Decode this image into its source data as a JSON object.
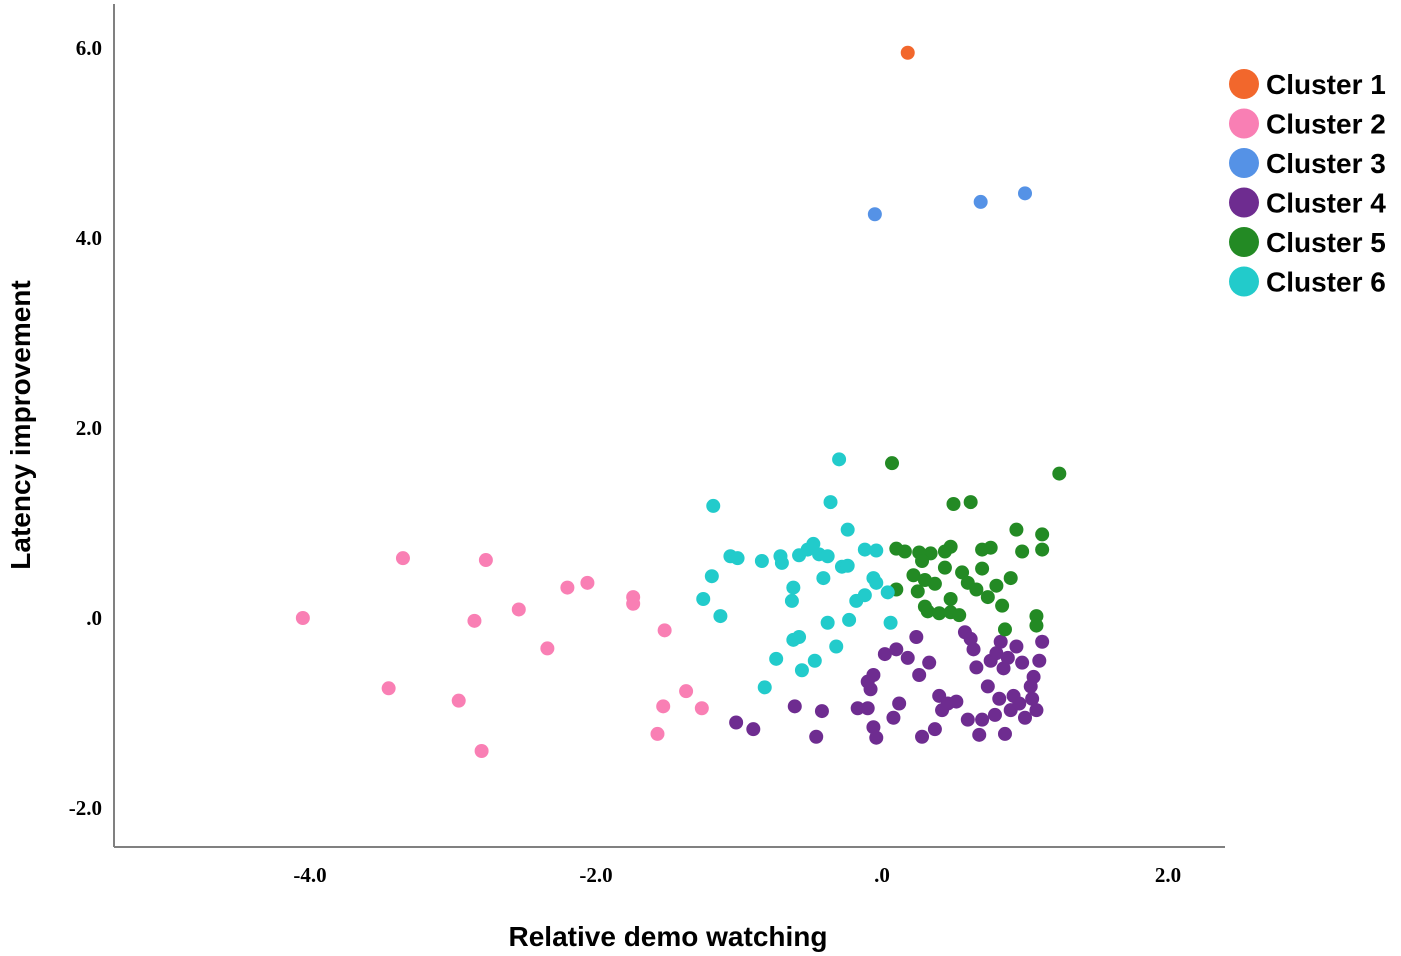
{
  "chart_data": {
    "type": "scatter",
    "xlabel": "Relative demo watching",
    "ylabel": "Latency improvement",
    "xlim": [
      -5.3,
      2.4
    ],
    "ylim": [
      -2.4,
      6.5
    ],
    "x_ticks": [
      {
        "value": -4.0,
        "label": "-4.0"
      },
      {
        "value": -2.0,
        "label": "-2.0"
      },
      {
        "value": 0.0,
        "label": ".0"
      },
      {
        "value": 2.0,
        "label": "2.0"
      }
    ],
    "y_ticks": [
      {
        "value": 6.0,
        "label": "6.0"
      },
      {
        "value": 4.0,
        "label": "4.0"
      },
      {
        "value": 2.0,
        "label": "2.0"
      },
      {
        "value": 0.0,
        "label": ".0"
      },
      {
        "value": -2.0,
        "label": "-2.0"
      }
    ],
    "grid": false,
    "legend_position": "top-right",
    "series": [
      {
        "name": "Cluster 1",
        "color": "#f2672c",
        "points": [
          [
            0.18,
            5.95
          ]
        ]
      },
      {
        "name": "Cluster 2",
        "color": "#f97fb4",
        "points": [
          [
            -4.05,
            0.0
          ],
          [
            -3.35,
            0.63
          ],
          [
            -2.77,
            0.61
          ],
          [
            -3.45,
            -0.74
          ],
          [
            -2.96,
            -0.87
          ],
          [
            -2.85,
            -0.03
          ],
          [
            -2.8,
            -1.4
          ],
          [
            -2.54,
            0.09
          ],
          [
            -2.34,
            -0.32
          ],
          [
            -2.2,
            0.32
          ],
          [
            -2.06,
            0.37
          ],
          [
            -1.74,
            0.22
          ],
          [
            -1.74,
            0.15
          ],
          [
            -1.52,
            -0.13
          ],
          [
            -1.53,
            -0.93
          ],
          [
            -1.57,
            -1.22
          ],
          [
            -1.37,
            -0.77
          ],
          [
            -1.26,
            -0.95
          ]
        ]
      },
      {
        "name": "Cluster 3",
        "color": "#5592e6",
        "points": [
          [
            -0.05,
            4.25
          ],
          [
            0.69,
            4.38
          ],
          [
            1.0,
            4.47
          ]
        ]
      },
      {
        "name": "Cluster 4",
        "color": "#6e2c90",
        "points": [
          [
            -1.02,
            -1.1
          ],
          [
            -0.9,
            -1.17
          ],
          [
            -0.61,
            -0.93
          ],
          [
            -0.46,
            -1.25
          ],
          [
            -0.42,
            -0.98
          ],
          [
            -0.17,
            -0.95
          ],
          [
            -0.1,
            -0.95
          ],
          [
            -0.06,
            -1.15
          ],
          [
            -0.04,
            -1.26
          ],
          [
            -0.08,
            -0.75
          ],
          [
            -0.1,
            -0.67
          ],
          [
            -0.06,
            -0.6
          ],
          [
            0.02,
            -0.38
          ],
          [
            0.1,
            -0.33
          ],
          [
            0.12,
            -0.9
          ],
          [
            0.08,
            -1.05
          ],
          [
            0.18,
            -0.42
          ],
          [
            0.24,
            -0.2
          ],
          [
            0.26,
            -0.6
          ],
          [
            0.28,
            -1.25
          ],
          [
            0.33,
            -0.47
          ],
          [
            0.37,
            -1.17
          ],
          [
            0.4,
            -0.82
          ],
          [
            0.42,
            -0.97
          ],
          [
            0.46,
            -0.9
          ],
          [
            0.52,
            -0.88
          ],
          [
            0.58,
            -0.15
          ],
          [
            0.62,
            -0.22
          ],
          [
            0.6,
            -1.07
          ],
          [
            0.64,
            -0.33
          ],
          [
            0.66,
            -0.52
          ],
          [
            0.68,
            -1.23
          ],
          [
            0.7,
            -1.07
          ],
          [
            0.74,
            -0.72
          ],
          [
            0.76,
            -0.45
          ],
          [
            0.79,
            -1.02
          ],
          [
            0.8,
            -0.37
          ],
          [
            0.82,
            -0.85
          ],
          [
            0.83,
            -0.25
          ],
          [
            0.85,
            -0.53
          ],
          [
            0.86,
            -1.22
          ],
          [
            0.88,
            -0.42
          ],
          [
            0.9,
            -0.97
          ],
          [
            0.92,
            -0.82
          ],
          [
            0.94,
            -0.3
          ],
          [
            0.96,
            -0.9
          ],
          [
            0.98,
            -0.47
          ],
          [
            1.0,
            -1.05
          ],
          [
            1.04,
            -0.72
          ],
          [
            1.06,
            -0.62
          ],
          [
            1.08,
            -0.97
          ],
          [
            1.05,
            -0.85
          ],
          [
            1.1,
            -0.45
          ],
          [
            1.12,
            -0.25
          ]
        ]
      },
      {
        "name": "Cluster 5",
        "color": "#238a24",
        "points": [
          [
            0.07,
            1.63
          ],
          [
            1.24,
            1.52
          ],
          [
            0.5,
            1.2
          ],
          [
            0.62,
            1.22
          ],
          [
            1.12,
            0.88
          ],
          [
            0.94,
            0.93
          ],
          [
            1.12,
            0.72
          ],
          [
            0.98,
            0.7
          ],
          [
            0.7,
            0.72
          ],
          [
            0.76,
            0.74
          ],
          [
            0.48,
            0.75
          ],
          [
            0.44,
            0.7
          ],
          [
            0.34,
            0.68
          ],
          [
            0.26,
            0.69
          ],
          [
            0.16,
            0.7
          ],
          [
            0.1,
            0.73
          ],
          [
            0.28,
            0.6
          ],
          [
            0.44,
            0.53
          ],
          [
            0.56,
            0.48
          ],
          [
            0.7,
            0.52
          ],
          [
            0.22,
            0.45
          ],
          [
            0.3,
            0.4
          ],
          [
            0.37,
            0.36
          ],
          [
            0.6,
            0.37
          ],
          [
            0.8,
            0.34
          ],
          [
            0.9,
            0.42
          ],
          [
            0.1,
            0.3
          ],
          [
            0.25,
            0.28
          ],
          [
            0.48,
            0.2
          ],
          [
            0.66,
            0.3
          ],
          [
            0.74,
            0.22
          ],
          [
            0.3,
            0.12
          ],
          [
            0.32,
            0.07
          ],
          [
            0.4,
            0.05
          ],
          [
            0.48,
            0.06
          ],
          [
            0.54,
            0.03
          ],
          [
            0.84,
            0.13
          ],
          [
            1.08,
            0.02
          ],
          [
            1.08,
            -0.08
          ],
          [
            0.86,
            -0.12
          ]
        ]
      },
      {
        "name": "Cluster 6",
        "color": "#22cbcb",
        "points": [
          [
            -1.18,
            1.18
          ],
          [
            -0.3,
            1.67
          ],
          [
            -0.36,
            1.22
          ],
          [
            -0.24,
            0.93
          ],
          [
            -1.06,
            0.65
          ],
          [
            -1.01,
            0.63
          ],
          [
            -0.84,
            0.6
          ],
          [
            -0.71,
            0.65
          ],
          [
            -0.7,
            0.58
          ],
          [
            -0.58,
            0.66
          ],
          [
            -0.52,
            0.72
          ],
          [
            -0.48,
            0.78
          ],
          [
            -0.44,
            0.67
          ],
          [
            -0.38,
            0.65
          ],
          [
            -0.28,
            0.54
          ],
          [
            -0.24,
            0.55
          ],
          [
            -0.12,
            0.72
          ],
          [
            -0.04,
            0.71
          ],
          [
            -1.19,
            0.44
          ],
          [
            -0.62,
            0.32
          ],
          [
            -0.41,
            0.42
          ],
          [
            -0.06,
            0.42
          ],
          [
            -0.04,
            0.37
          ],
          [
            0.04,
            0.27
          ],
          [
            -1.25,
            0.2
          ],
          [
            -0.63,
            0.18
          ],
          [
            -0.18,
            0.18
          ],
          [
            -0.12,
            0.24
          ],
          [
            -1.13,
            0.02
          ],
          [
            -0.23,
            -0.02
          ],
          [
            -0.38,
            -0.05
          ],
          [
            0.06,
            -0.05
          ],
          [
            -0.58,
            -0.2
          ],
          [
            -0.62,
            -0.23
          ],
          [
            -0.32,
            -0.3
          ],
          [
            -0.47,
            -0.45
          ],
          [
            -0.74,
            -0.43
          ],
          [
            -0.56,
            -0.55
          ],
          [
            -0.82,
            -0.73
          ]
        ]
      }
    ]
  }
}
